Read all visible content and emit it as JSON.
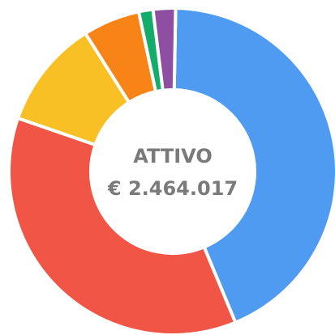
{
  "chart_data": {
    "type": "pie",
    "title": "ATTIVO",
    "subtitle": "€ 2.464.017",
    "values": [
      43.3,
      36.4,
      10.7,
      5.6,
      1.4,
      2.2
    ],
    "colors": [
      "#4f9bf2",
      "#f05545",
      "#f8c025",
      "#f88418",
      "#13ac6b",
      "#8e4ea2"
    ]
  }
}
